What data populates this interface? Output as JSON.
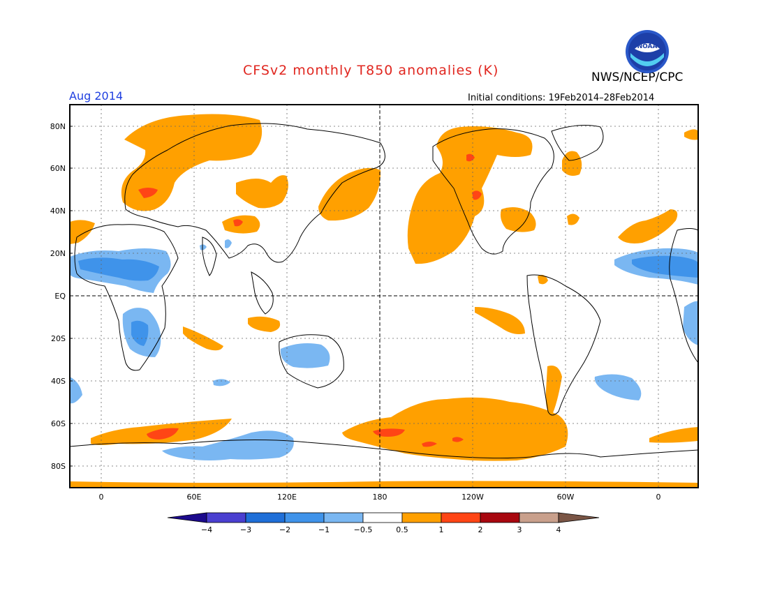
{
  "header": {
    "title": "CFSv2 monthly T850 anomalies (K)",
    "agency": "NWS/NCEP/CPC",
    "logo_text": "NOAA",
    "valid_month": "Aug 2014",
    "initial_conditions": "Initial conditions: 19Feb2014–28Feb2014"
  },
  "map": {
    "lat_ticks": [
      "80N",
      "60N",
      "40N",
      "20N",
      "EQ",
      "20S",
      "40S",
      "60S",
      "80S"
    ],
    "lon_ticks": [
      "0",
      "60E",
      "120E",
      "180",
      "120W",
      "60W",
      "0"
    ]
  },
  "colorbar": {
    "labels": [
      "−4",
      "−3",
      "−2",
      "−1",
      "−0.5",
      "0.5",
      "1",
      "2",
      "3",
      "4"
    ],
    "colors": [
      "#1c0a8c",
      "#4a3fd0",
      "#1f6fd8",
      "#3f93ea",
      "#7ab7f2",
      "#ffffff",
      "#ffa000",
      "#ff4515",
      "#a8070f",
      "#c9a08c",
      "#7a5545"
    ]
  },
  "colors": {
    "warm": "#ffa000",
    "hot": "#ff4515",
    "cool": "#7ab7f2",
    "cold": "#3f93ea",
    "title": "#e0261f",
    "month": "#1f3fe0"
  }
}
